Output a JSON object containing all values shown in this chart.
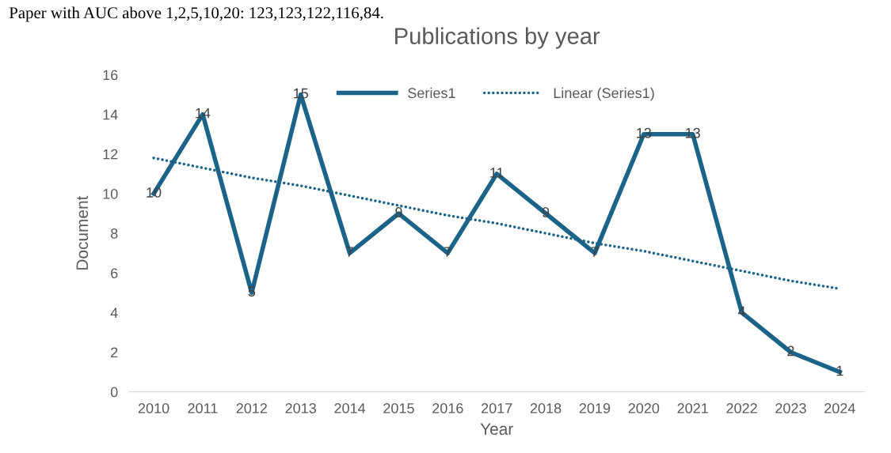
{
  "chart_data": {
    "type": "line",
    "title": "Publications by year",
    "xlabel": "Year",
    "ylabel": "Document",
    "annotations": [
      "Paper with AUC above 1,2,5,10,20: 123,123,122,116,84."
    ],
    "categories": [
      "2010",
      "2011",
      "2012",
      "2013",
      "2014",
      "2015",
      "2016",
      "2017",
      "2018",
      "2019",
      "2020",
      "2021",
      "2022",
      "2023",
      "2024"
    ],
    "series": [
      {
        "name": "Series1",
        "color": "#1b6388",
        "values": [
          10,
          14,
          5,
          15,
          7,
          9,
          7,
          11,
          9,
          7,
          13,
          13,
          4,
          2,
          1
        ],
        "value_labels": [
          "10",
          "14",
          "5",
          "15",
          "7",
          "9",
          "7",
          "11",
          "9",
          "7",
          "13",
          "13",
          "4",
          "2",
          "1"
        ]
      },
      {
        "name": "Linear (Series1)",
        "type": "line",
        "line_style": "dotted",
        "color": "#1b6388",
        "values": [
          11.8,
          11.3,
          10.8,
          10.4,
          9.9,
          9.4,
          8.9,
          8.5,
          8.0,
          7.5,
          7.1,
          6.6,
          6.1,
          5.6,
          5.2
        ]
      }
    ],
    "ylim": [
      0,
      16
    ],
    "yticks": [
      0,
      2,
      4,
      6,
      8,
      10,
      12,
      14,
      16
    ],
    "grid": false,
    "legend": "top",
    "line_style": "solid",
    "marker": "none"
  }
}
